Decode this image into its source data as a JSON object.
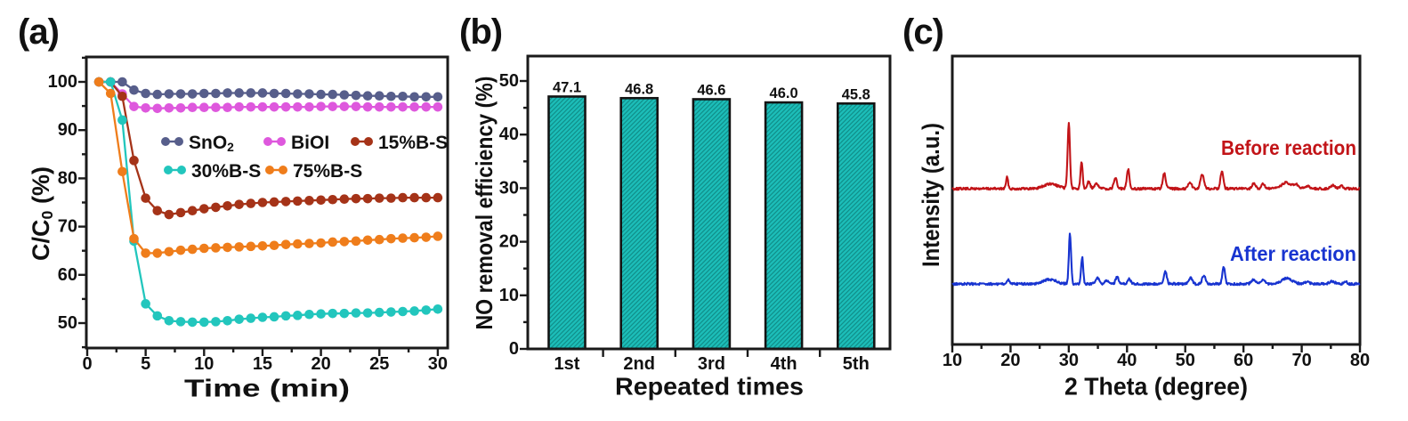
{
  "figure": {
    "background": "#ffffff",
    "axis_color": "#1a1a1a",
    "panels": [
      {
        "id": "a",
        "label": "(a)"
      },
      {
        "id": "b",
        "label": "(b)"
      },
      {
        "id": "c",
        "label": "(c)"
      }
    ]
  },
  "chart_data": [
    {
      "panel": "a",
      "type": "line",
      "xlabel": "Time (min)",
      "ylabel": "C/C0 (%)",
      "ylabel_parts": [
        {
          "t": "C/C"
        },
        {
          "t": "0",
          "sub": true
        },
        {
          "t": " (%)"
        }
      ],
      "xlim": [
        0,
        30.9
      ],
      "ylim": [
        44.8,
        105.3
      ],
      "xticks": [
        0,
        5,
        10,
        15,
        20,
        25,
        30
      ],
      "xticks_minor": [
        2.5,
        7.5,
        12.5,
        17.5,
        22.5,
        27.5
      ],
      "yticks": [
        50,
        60,
        70,
        80,
        90,
        100
      ],
      "yticks_minor": [
        45,
        55,
        65,
        75,
        85,
        95,
        105
      ],
      "x": [
        1,
        2,
        3,
        4,
        5,
        6,
        7,
        8,
        9,
        10,
        11,
        12,
        13,
        14,
        15,
        16,
        17,
        18,
        19,
        20,
        21,
        22,
        23,
        24,
        25,
        26,
        27,
        28,
        29,
        30
      ],
      "series": [
        {
          "name": "SnO2",
          "label_parts": [
            {
              "t": "SnO"
            },
            {
              "t": "2",
              "sub": true
            }
          ],
          "color": "#575E8B",
          "values": [
            100,
            100,
            100,
            98.3,
            97.6,
            97.4,
            97.5,
            97.5,
            97.5,
            97.6,
            97.6,
            97.7,
            97.7,
            97.7,
            97.7,
            97.6,
            97.6,
            97.5,
            97.5,
            97.4,
            97.4,
            97.3,
            97.2,
            97.1,
            97.1,
            97.0,
            97.0,
            96.9,
            96.9,
            96.9
          ]
        },
        {
          "name": "BiOI",
          "label_parts": [
            {
              "t": "BiOI"
            }
          ],
          "color": "#DE58DD",
          "values": [
            100,
            100,
            97.5,
            94.9,
            94.6,
            94.5,
            94.6,
            94.6,
            94.7,
            94.7,
            94.7,
            94.7,
            94.8,
            94.8,
            94.8,
            94.8,
            94.8,
            94.8,
            94.8,
            94.9,
            94.9,
            94.9,
            94.9,
            94.8,
            94.8,
            94.8,
            94.8,
            94.8,
            94.8,
            94.8
          ]
        },
        {
          "name": "15%B-S",
          "label_parts": [
            {
              "t": "15%B-S"
            }
          ],
          "color": "#A53318",
          "values": [
            100,
            100,
            97.0,
            83.7,
            75.9,
            73.3,
            72.5,
            72.9,
            73.3,
            73.7,
            74.0,
            74.3,
            74.6,
            74.8,
            75.0,
            75.1,
            75.2,
            75.3,
            75.4,
            75.5,
            75.6,
            75.7,
            75.8,
            75.8,
            75.9,
            75.9,
            76.0,
            76.0,
            76.0,
            76.0
          ]
        },
        {
          "name": "30%B-S",
          "label_parts": [
            {
              "t": "30%B-S"
            }
          ],
          "color": "#22C6BD",
          "values": [
            100,
            100,
            92.1,
            67.0,
            54.0,
            51.5,
            50.5,
            50.3,
            50.2,
            50.2,
            50.3,
            50.5,
            50.8,
            51.0,
            51.2,
            51.3,
            51.5,
            51.6,
            51.8,
            51.9,
            52.0,
            52.0,
            52.1,
            52.1,
            52.2,
            52.3,
            52.4,
            52.5,
            52.7,
            52.9
          ]
        },
        {
          "name": "75%B-S",
          "label_parts": [
            {
              "t": "75%B-S"
            }
          ],
          "color": "#EF7D1B",
          "values": [
            100,
            97.6,
            81.4,
            67.5,
            64.5,
            64.5,
            64.8,
            65.1,
            65.3,
            65.5,
            65.6,
            65.7,
            65.8,
            65.9,
            66.0,
            66.1,
            66.3,
            66.4,
            66.5,
            66.6,
            66.8,
            66.9,
            67.0,
            67.2,
            67.3,
            67.5,
            67.6,
            67.7,
            67.8,
            68.0
          ]
        }
      ],
      "legend": {
        "position": "inside upper center, two rows",
        "rows": [
          [
            "SnO2",
            "BiOI",
            "15%B-S"
          ],
          [
            "30%B-S",
            "75%B-S"
          ]
        ]
      }
    },
    {
      "panel": "b",
      "type": "bar",
      "xlabel": "Repeated times",
      "ylabel": "NO removal efficiency (%)",
      "categories": [
        "1st",
        "2nd",
        "3rd",
        "4th",
        "5th"
      ],
      "values": [
        47.1,
        46.8,
        46.6,
        46.0,
        45.8
      ],
      "bar_labels": [
        "47.1",
        "46.8",
        "46.6",
        "46.0",
        "45.8"
      ],
      "ylim": [
        0,
        55
      ],
      "yticks": [
        0,
        10,
        20,
        30,
        40,
        50
      ],
      "yticks_minor": [
        5,
        15,
        25,
        35,
        45
      ],
      "bar_color": "#1CBEB9",
      "bar_hatch_color": "#0F8E89",
      "bar_edge_color": "#141414",
      "hatch": "diagonal /"
    },
    {
      "panel": "c",
      "type": "line",
      "subtype": "xrd",
      "xlabel": "2 Theta (degree)",
      "ylabel": "Intensity (a.u.)",
      "xlim": [
        10,
        80
      ],
      "xticks": [
        10,
        20,
        30,
        40,
        50,
        60,
        70,
        80
      ],
      "xticks_minor": [
        15,
        25,
        35,
        45,
        55,
        65,
        75
      ],
      "series": [
        {
          "name": "Before reaction",
          "color": "#C21418",
          "peaks": [
            [
              19.4,
              0.17,
              0.18
            ],
            [
              26.9,
              0.07,
              1.2
            ],
            [
              30.0,
              1.0,
              0.2
            ],
            [
              32.2,
              0.42,
              0.18
            ],
            [
              33.4,
              0.1,
              0.28
            ],
            [
              34.8,
              0.08,
              0.3
            ],
            [
              38.0,
              0.17,
              0.25
            ],
            [
              40.2,
              0.3,
              0.22
            ],
            [
              46.4,
              0.23,
              0.25
            ],
            [
              50.8,
              0.1,
              0.3
            ],
            [
              52.9,
              0.22,
              0.28
            ],
            [
              56.3,
              0.27,
              0.24
            ],
            [
              61.8,
              0.08,
              0.3
            ],
            [
              63.4,
              0.07,
              0.3
            ],
            [
              67.3,
              0.09,
              0.8
            ],
            [
              69.0,
              0.06,
              0.4
            ],
            [
              71.0,
              0.04,
              0.4
            ],
            [
              75.3,
              0.05,
              0.4
            ],
            [
              76.8,
              0.04,
              0.3
            ]
          ]
        },
        {
          "name": "After reaction",
          "color": "#1834D0",
          "peaks": [
            [
              19.6,
              0.08,
              0.2
            ],
            [
              26.7,
              0.09,
              1.1
            ],
            [
              30.2,
              1.0,
              0.19
            ],
            [
              32.3,
              0.52,
              0.18
            ],
            [
              34.9,
              0.12,
              0.28
            ],
            [
              36.5,
              0.06,
              0.3
            ],
            [
              38.3,
              0.14,
              0.25
            ],
            [
              40.4,
              0.1,
              0.25
            ],
            [
              46.6,
              0.24,
              0.24
            ],
            [
              50.9,
              0.12,
              0.3
            ],
            [
              53.2,
              0.17,
              0.28
            ],
            [
              56.6,
              0.33,
              0.22
            ],
            [
              61.7,
              0.08,
              0.35
            ],
            [
              63.3,
              0.08,
              0.35
            ],
            [
              67.5,
              0.11,
              0.9
            ],
            [
              70.9,
              0.04,
              0.4
            ],
            [
              75.2,
              0.05,
              0.5
            ],
            [
              77.5,
              0.04,
              0.3
            ]
          ]
        }
      ],
      "annotations": [
        {
          "text": "Before reaction",
          "color": "#C21418",
          "anchor": "right, above red trace"
        },
        {
          "text": "After reaction",
          "color": "#1834D0",
          "anchor": "right, above blue trace"
        }
      ]
    }
  ]
}
